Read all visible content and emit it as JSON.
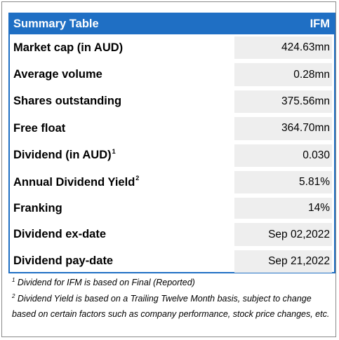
{
  "table": {
    "header_left": "Summary Table",
    "header_right": "IFM",
    "rows": [
      {
        "label": "Market cap (in AUD)",
        "sup": "",
        "value": "424.63mn"
      },
      {
        "label": "Average volume",
        "sup": "",
        "value": "0.28mn"
      },
      {
        "label": "Shares outstanding",
        "sup": "",
        "value": "375.56mn"
      },
      {
        "label": "Free float",
        "sup": "",
        "value": "364.70mn"
      },
      {
        "label": "Dividend (in AUD)",
        "sup": "1",
        "value": "0.030"
      },
      {
        "label": "Annual Dividend Yield",
        "sup": "2",
        "value": "5.81%"
      },
      {
        "label": "Franking",
        "sup": "",
        "value": "14%"
      },
      {
        "label": "Dividend ex-date",
        "sup": "",
        "value": "Sep 02,2022"
      },
      {
        "label": "Dividend pay-date",
        "sup": "",
        "value": "Sep 21,2022"
      }
    ]
  },
  "notes": [
    {
      "marker": "1",
      "text": " Dividend for IFM is based on Final (Reported)"
    },
    {
      "marker": "2",
      "text": "  Dividend Yield is based on a Trailing Twelve Month basis, subject to change based on certain factors such as company performance, stock price changes, etc."
    }
  ],
  "colors": {
    "header_bg": "#1f6fc4",
    "value_bg": "#eeeeee"
  }
}
